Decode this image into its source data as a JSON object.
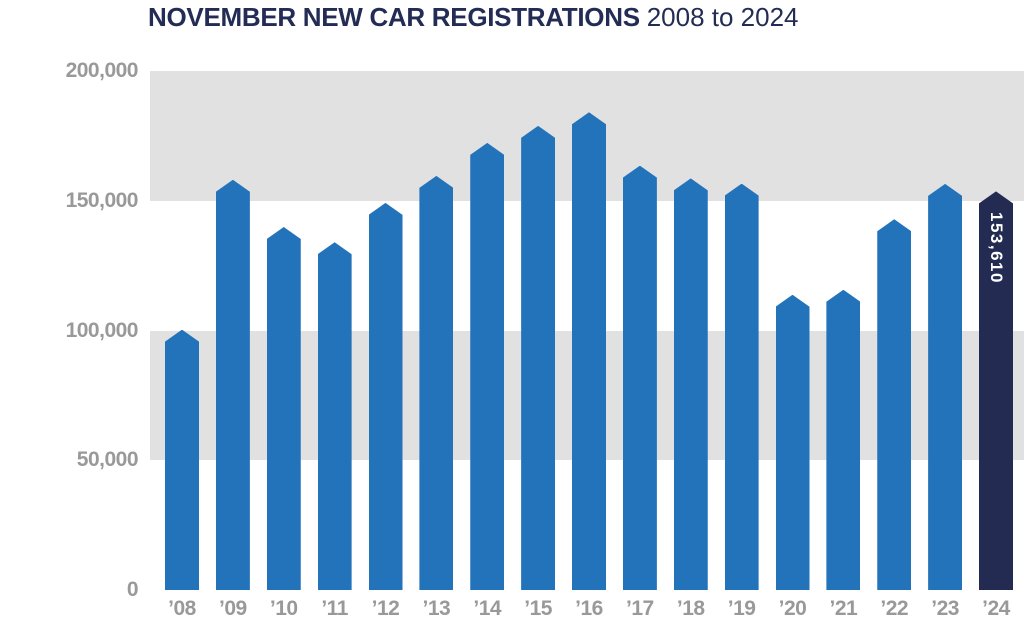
{
  "chart": {
    "title_main": "NOVEMBER NEW CAR REGISTRATIONS",
    "title_range": "2008 to 2024"
  },
  "chart_data": {
    "type": "bar",
    "title": "NOVEMBER NEW CAR REGISTRATIONS",
    "subtitle": "2008 to 2024",
    "xlabel": "",
    "ylabel": "",
    "categories": [
      "’08",
      "’09",
      "’10",
      "’11",
      "’12",
      "’13",
      "’14",
      "’15",
      "’16",
      "’17",
      "’18",
      "’19",
      "’20",
      "’21",
      "’22",
      "’23",
      "’24"
    ],
    "years": [
      2008,
      2009,
      2010,
      2011,
      2012,
      2013,
      2014,
      2015,
      2016,
      2017,
      2018,
      2019,
      2020,
      2021,
      2022,
      2023,
      2024
    ],
    "values": [
      100333,
      158082,
      139875,
      134027,
      149191,
      159581,
      172327,
      178876,
      184101,
      163541,
      158639,
      156621,
      113781,
      115706,
      142889,
      156525,
      153610
    ],
    "highlight": {
      "category": "’24",
      "year": 2024,
      "value": 153610,
      "label": "153,610"
    },
    "ylim": [
      0,
      200000
    ],
    "y_ticks": [
      {
        "value": 200000,
        "label": "200,000"
      },
      {
        "value": 150000,
        "label": "150,000"
      },
      {
        "value": 100000,
        "label": "100,000"
      },
      {
        "value": 50000,
        "label": "50,000"
      },
      {
        "value": 0,
        "label": "0"
      }
    ],
    "grid": "alternating horizontal gray bands between 50,000-unit intervals (150k-200k and 50k-100k shaded)",
    "legend": "none",
    "bar_shape": "rectangular column with pointed (chamfered) top cap",
    "colors": {
      "bar": "#2373BB",
      "highlight_bar": "#242B52",
      "band": "#E2E1E2",
      "tick_text": "#9A999A",
      "title_text": "#232C54",
      "value_label_text": "#FFFFFF",
      "background": "#FFFFFF"
    }
  }
}
